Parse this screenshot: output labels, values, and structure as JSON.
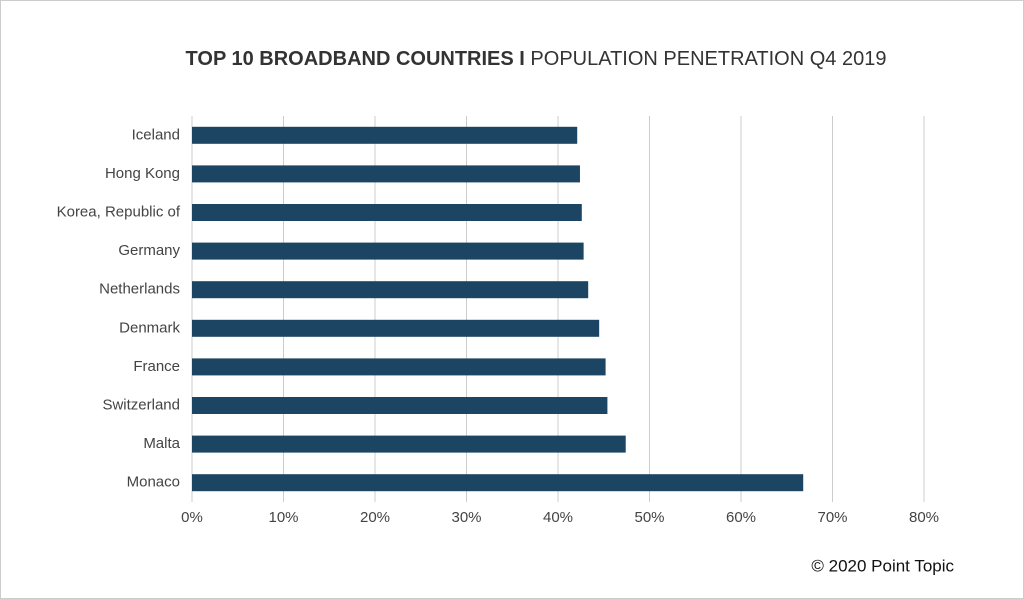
{
  "chart_data": {
    "type": "hbar",
    "title": "TOP 10 BROADBAND COUNTRIES I",
    "subtitle": "POPULATION PENETRATION Q4 2019",
    "categories": [
      "Iceland",
      "Hong Kong",
      "Korea, Republic of",
      "Germany",
      "Netherlands",
      "Denmark",
      "France",
      "Switzerland",
      "Malta",
      "Monaco"
    ],
    "values": [
      42.1,
      42.4,
      42.6,
      42.8,
      43.3,
      44.5,
      45.2,
      45.4,
      47.4,
      66.8
    ],
    "color": "#1b4562",
    "xlim": [
      0,
      80
    ],
    "xticks": [
      {
        "value": 0,
        "label": "0%"
      },
      {
        "value": 10,
        "label": "10%"
      },
      {
        "value": 20,
        "label": "20%"
      },
      {
        "value": 30,
        "label": "30%"
      },
      {
        "value": 40,
        "label": "40%"
      },
      {
        "value": 50,
        "label": "50%"
      },
      {
        "value": 60,
        "label": "60%"
      },
      {
        "value": 70,
        "label": "70%"
      },
      {
        "value": 80,
        "label": "80%"
      }
    ],
    "grid": true,
    "footer": "© 2020 Point Topic"
  }
}
